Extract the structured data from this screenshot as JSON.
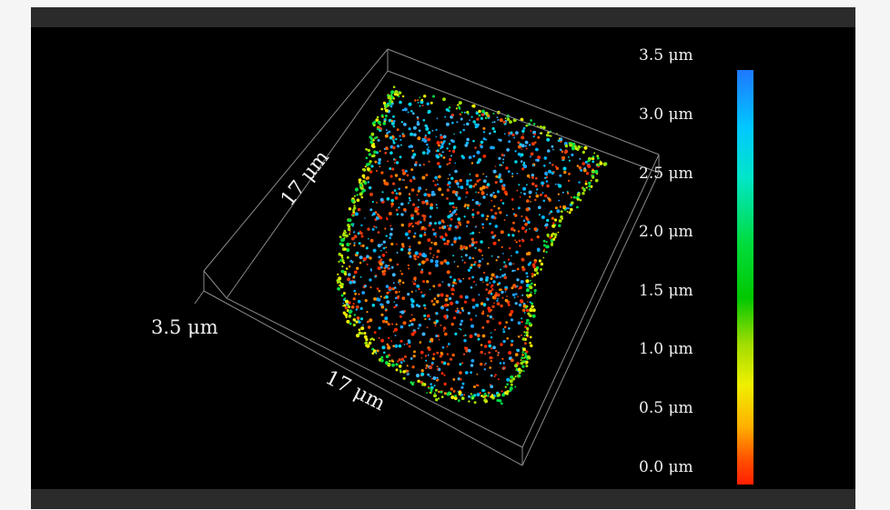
{
  "scene": {
    "box_width_label": "17 μm",
    "box_depth_label": "17 μm",
    "box_height_label": "3.5 μm"
  },
  "colorbar": {
    "ticks": [
      "3.5 μm",
      "3.0 μm",
      "2.5 μm",
      "2.0 μm",
      "1.5 μm",
      "1.0 μm",
      "0.5 μm",
      "0.0 μm"
    ],
    "top_color": "#1e78ff",
    "bottom_color": "#ff1e00"
  },
  "colors": {
    "frame": "#2b2b2b",
    "viewer_background": "#000000",
    "box_lines": "#8a8a8a"
  }
}
